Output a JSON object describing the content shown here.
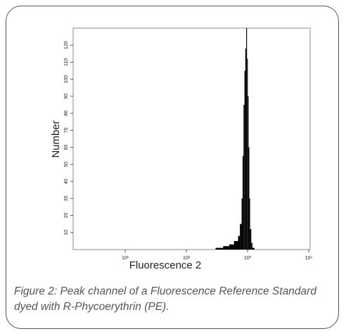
{
  "chart_data": {
    "type": "histogram",
    "x_label": "Fluorescence 2",
    "y_label": "Number",
    "caption": "Figure 2: Peak channel of a Fluorescence Reference Standard dyed with R-Phycoerythrin (PE).",
    "color": "#000000",
    "x_scale": "log",
    "xlim": [
      1,
      10000
    ],
    "xticks": [
      {
        "value": 10,
        "label": "10¹"
      },
      {
        "value": 100,
        "label": "10²"
      },
      {
        "value": 1000,
        "label": "10³"
      },
      {
        "value": 10000,
        "label": "10⁴"
      }
    ],
    "ylim": [
      0,
      130
    ],
    "yticks": [
      10,
      20,
      30,
      40,
      50,
      60,
      70,
      80,
      90,
      100,
      110,
      120
    ],
    "bins": [
      300,
      400,
      500,
      600,
      700,
      750,
      800,
      830,
      860,
      890,
      920,
      950,
      980,
      1010,
      1040,
      1070,
      1100,
      1150,
      1200,
      1300
    ],
    "values": [
      1,
      2,
      3,
      5,
      8,
      15,
      30,
      55,
      85,
      105,
      118,
      130,
      112,
      90,
      60,
      30,
      12,
      4,
      1
    ]
  }
}
